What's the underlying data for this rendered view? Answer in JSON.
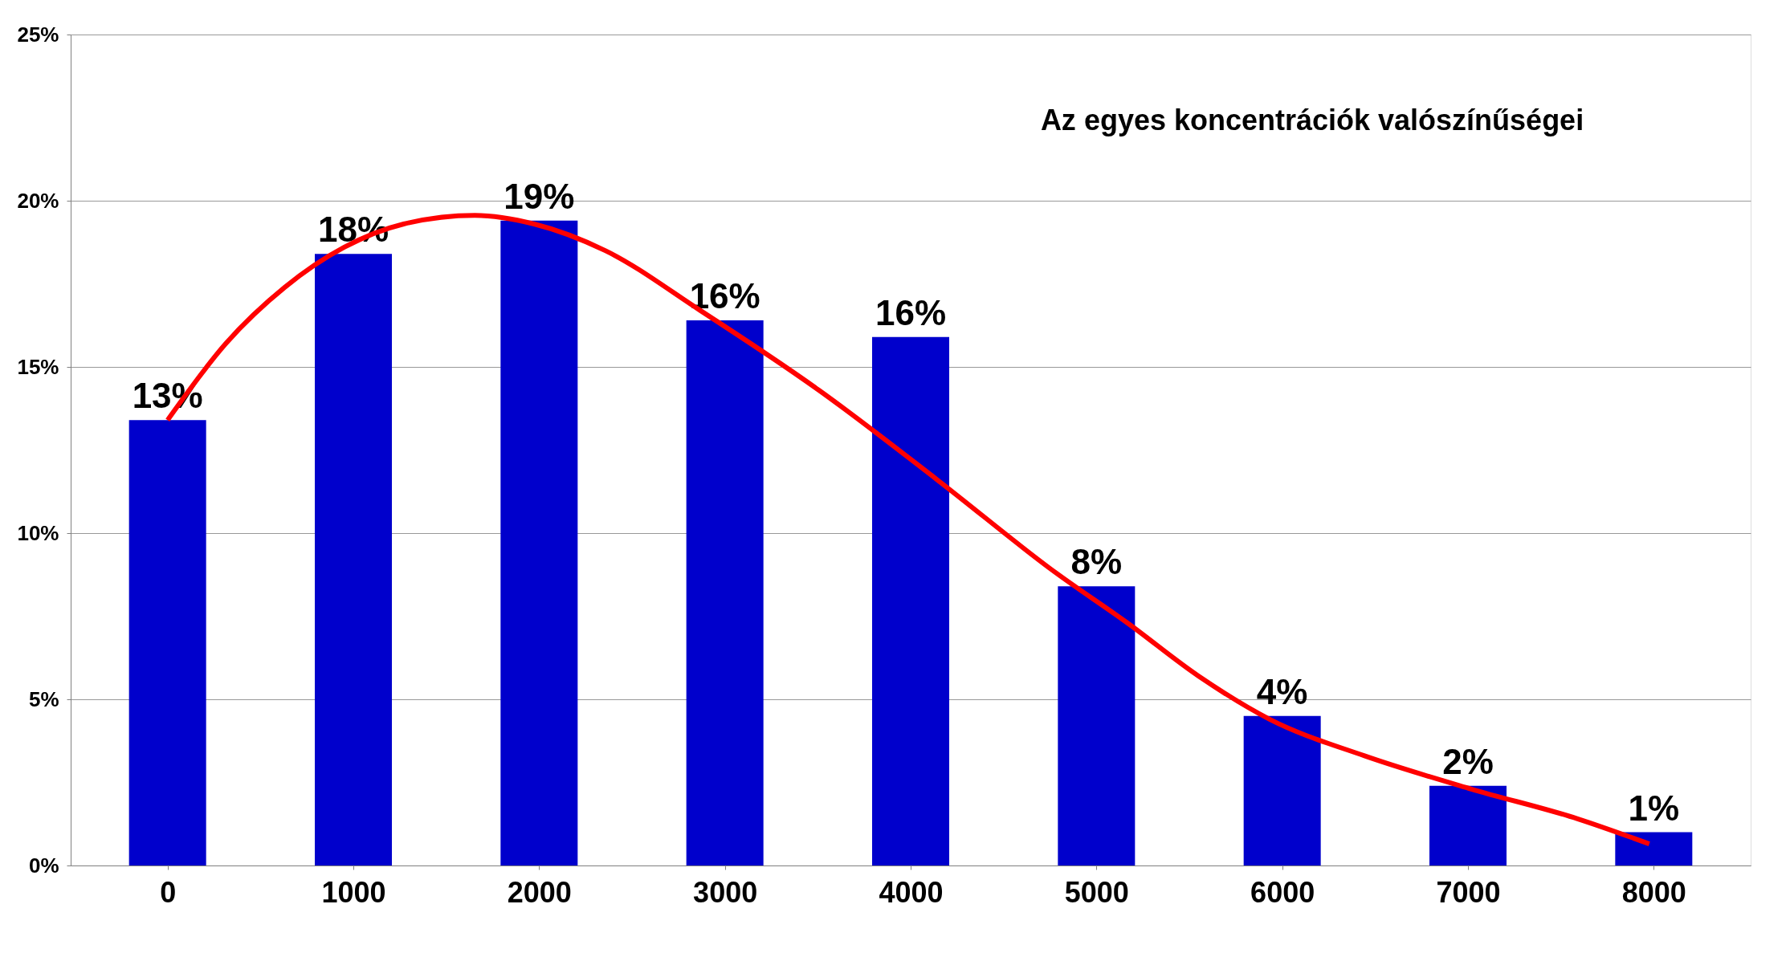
{
  "chart_data": {
    "type": "bar",
    "title": "Az egyes koncentrációk valószínűségei",
    "x": [
      0,
      1000,
      2000,
      3000,
      4000,
      5000,
      6000,
      7000,
      8000
    ],
    "series": [
      {
        "color": "#0000cc",
        "values": [
          13.4,
          18.4,
          19.4,
          16.4,
          15.9,
          8.4,
          4.5,
          2.4,
          1.0
        ],
        "value_labels": [
          "13%",
          "18%",
          "19%",
          "16%",
          "16%",
          "8%",
          "4%",
          "2%",
          "1%"
        ]
      },
      {
        "type": "line",
        "color": "#ff0000",
        "x": [
          0,
          313,
          632,
          951,
          1271,
          1654,
          1973,
          2356,
          2867,
          3506,
          4144,
          4783,
          5166,
          5549,
          5932,
          6443,
          7018,
          7593,
          7976
        ],
        "values": [
          13.4,
          15.7,
          17.4,
          18.6,
          19.3,
          19.56,
          19.3,
          18.5,
          16.7,
          14.3,
          11.6,
          8.8,
          7.3,
          5.7,
          4.4,
          3.3,
          2.3,
          1.4,
          0.65
        ]
      }
    ],
    "xlim": [
      -500,
      8500
    ],
    "xticks": [
      0,
      1000,
      2000,
      3000,
      4000,
      5000,
      6000,
      7000,
      8000
    ],
    "ylim": [
      0,
      25
    ],
    "yticks": [
      {
        "value": 0,
        "label": "0%"
      },
      {
        "value": 5,
        "label": "5%"
      },
      {
        "value": 10,
        "label": "10%"
      },
      {
        "value": 15,
        "label": "15%"
      },
      {
        "value": 20,
        "label": "20%"
      },
      {
        "value": 25,
        "label": "25%"
      }
    ],
    "grid": "y"
  }
}
